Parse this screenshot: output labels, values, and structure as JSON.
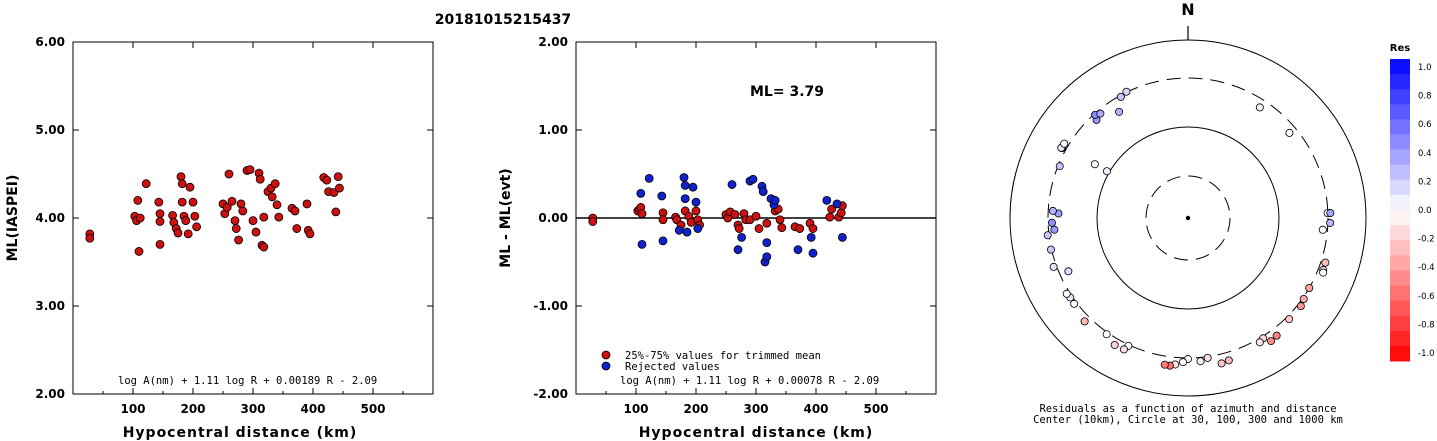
{
  "title": "20181015215437",
  "chart_data": [
    {
      "type": "scatter",
      "name": "ml-vs-distance",
      "xlabel": "Hypocentral distance (km)",
      "ylabel": "ML(IASPEI)",
      "xlim": [
        0,
        600
      ],
      "ylim": [
        2.0,
        6.0
      ],
      "xticks": [
        "100",
        "200",
        "300",
        "400",
        "500"
      ],
      "yticks": [
        "2.00",
        "3.00",
        "4.00",
        "5.00",
        "6.00"
      ],
      "formula": "log A(nm) + 1.11 log R + 0.00189 R - 2.09",
      "color": "#cc1111",
      "points": [
        [
          28,
          3.82
        ],
        [
          28,
          3.77
        ],
        [
          103,
          4.02
        ],
        [
          106,
          3.97
        ],
        [
          108,
          4.2
        ],
        [
          110,
          3.62
        ],
        [
          112,
          4.0
        ],
        [
          122,
          4.39
        ],
        [
          143,
          4.18
        ],
        [
          145,
          4.05
        ],
        [
          145,
          3.96
        ],
        [
          145,
          3.7
        ],
        [
          166,
          4.03
        ],
        [
          168,
          3.95
        ],
        [
          172,
          3.88
        ],
        [
          175,
          3.83
        ],
        [
          180,
          4.47
        ],
        [
          182,
          4.39
        ],
        [
          182,
          4.18
        ],
        [
          185,
          4.02
        ],
        [
          188,
          3.97
        ],
        [
          192,
          3.82
        ],
        [
          195,
          4.35
        ],
        [
          200,
          4.18
        ],
        [
          203,
          4.02
        ],
        [
          206,
          3.9
        ],
        [
          250,
          4.16
        ],
        [
          253,
          4.05
        ],
        [
          257,
          4.12
        ],
        [
          260,
          4.5
        ],
        [
          265,
          4.19
        ],
        [
          270,
          3.97
        ],
        [
          272,
          3.88
        ],
        [
          276,
          3.75
        ],
        [
          280,
          4.16
        ],
        [
          283,
          4.08
        ],
        [
          290,
          4.54
        ],
        [
          295,
          4.55
        ],
        [
          300,
          3.97
        ],
        [
          305,
          3.84
        ],
        [
          310,
          4.51
        ],
        [
          312,
          4.44
        ],
        [
          315,
          3.69
        ],
        [
          318,
          4.01
        ],
        [
          318,
          3.67
        ],
        [
          325,
          4.3
        ],
        [
          330,
          4.34
        ],
        [
          332,
          4.24
        ],
        [
          337,
          4.39
        ],
        [
          340,
          4.15
        ],
        [
          343,
          4.01
        ],
        [
          365,
          4.11
        ],
        [
          370,
          4.08
        ],
        [
          373,
          3.88
        ],
        [
          390,
          4.16
        ],
        [
          392,
          3.86
        ],
        [
          395,
          3.82
        ],
        [
          418,
          4.46
        ],
        [
          423,
          4.43
        ],
        [
          426,
          4.3
        ],
        [
          435,
          4.29
        ],
        [
          438,
          4.07
        ],
        [
          442,
          4.47
        ],
        [
          444,
          4.34
        ]
      ]
    },
    {
      "type": "scatter",
      "name": "residual-vs-distance",
      "xlabel": "Hypocentral distance (km)",
      "ylabel": "ML - ML(evt)",
      "xlim": [
        0,
        600
      ],
      "ylim": [
        -2.0,
        2.0
      ],
      "xticks": [
        "100",
        "200",
        "300",
        "400",
        "500"
      ],
      "yticks": [
        "-2.00",
        "-1.00",
        "0.00",
        "1.00",
        "2.00"
      ],
      "annotation": "ML= 3.79",
      "formula": "log A(nm) + 1.11 log R + 0.00078 R - 2.09",
      "legend": [
        {
          "label": "25%-75% values for trimmed mean",
          "color": "#cc1111"
        },
        {
          "label": "Rejected values",
          "color": "#1122cc"
        }
      ],
      "series": [
        {
          "color": "#cc1111",
          "points": [
            [
              28,
              0.0
            ],
            [
              28,
              -0.04
            ],
            [
              103,
              0.08
            ],
            [
              106,
              0.1
            ],
            [
              108,
              0.12
            ],
            [
              110,
              0.05
            ],
            [
              145,
              0.06
            ],
            [
              145,
              -0.02
            ],
            [
              166,
              0.01
            ],
            [
              168,
              -0.02
            ],
            [
              175,
              -0.08
            ],
            [
              182,
              0.08
            ],
            [
              188,
              0.02
            ],
            [
              192,
              -0.05
            ],
            [
              200,
              0.08
            ],
            [
              203,
              -0.02
            ],
            [
              206,
              -0.08
            ],
            [
              250,
              0.04
            ],
            [
              253,
              0.0
            ],
            [
              257,
              0.07
            ],
            [
              265,
              0.04
            ],
            [
              270,
              -0.08
            ],
            [
              272,
              -0.12
            ],
            [
              280,
              0.05
            ],
            [
              283,
              -0.02
            ],
            [
              290,
              -0.02
            ],
            [
              300,
              0.02
            ],
            [
              305,
              -0.12
            ],
            [
              318,
              -0.06
            ],
            [
              332,
              0.08
            ],
            [
              337,
              0.1
            ],
            [
              340,
              -0.02
            ],
            [
              343,
              -0.11
            ],
            [
              365,
              -0.1
            ],
            [
              373,
              -0.12
            ],
            [
              390,
              -0.06
            ],
            [
              395,
              -0.12
            ],
            [
              423,
              0.01
            ],
            [
              426,
              0.1
            ],
            [
              438,
              0.01
            ],
            [
              442,
              0.06
            ],
            [
              444,
              0.14
            ]
          ]
        },
        {
          "color": "#1122cc",
          "points": [
            [
              108,
              0.28
            ],
            [
              110,
              -0.3
            ],
            [
              122,
              0.45
            ],
            [
              143,
              0.25
            ],
            [
              145,
              -0.26
            ],
            [
              172,
              -0.14
            ],
            [
              180,
              0.46
            ],
            [
              182,
              0.37
            ],
            [
              182,
              0.22
            ],
            [
              185,
              -0.16
            ],
            [
              195,
              0.35
            ],
            [
              200,
              0.18
            ],
            [
              203,
              -0.12
            ],
            [
              260,
              0.38
            ],
            [
              270,
              -0.36
            ],
            [
              276,
              -0.22
            ],
            [
              290,
              0.42
            ],
            [
              295,
              0.44
            ],
            [
              310,
              0.36
            ],
            [
              312,
              0.3
            ],
            [
              315,
              -0.5
            ],
            [
              318,
              -0.44
            ],
            [
              318,
              -0.28
            ],
            [
              325,
              0.22
            ],
            [
              330,
              0.15
            ],
            [
              332,
              0.2
            ],
            [
              370,
              -0.36
            ],
            [
              392,
              -0.22
            ],
            [
              395,
              -0.4
            ],
            [
              418,
              0.2
            ],
            [
              435,
              0.16
            ],
            [
              444,
              -0.22
            ]
          ]
        }
      ]
    },
    {
      "type": "scatter",
      "name": "residual-azimuth-map",
      "north_label": "N",
      "caption_line1": "Residuals as a function of azimuth and distance",
      "caption_line2": "Center (10km), Circle at 30, 100, 300 and 1000 km",
      "colorbar_title": "Res",
      "colorbar_ticks": [
        "1.0",
        "0.8",
        "0.6",
        "0.4",
        "0.2",
        "0.0",
        "-0.2",
        "-0.4",
        "-0.6",
        "-0.8",
        "-1.0"
      ],
      "stations": [
        {
          "az": 300,
          "dist": 106,
          "res": 0.05
        },
        {
          "az": 300,
          "dist": 145,
          "res": 0.02
        },
        {
          "az": 33,
          "dist": 250,
          "res": 0.04
        },
        {
          "az": 50,
          "dist": 253,
          "res": 0.01
        },
        {
          "az": 88,
          "dist": 298,
          "res": 0.04
        },
        {
          "az": 95,
          "dist": 270,
          "res": 0.01
        },
        {
          "az": 88,
          "dist": 324,
          "res": 0.35
        },
        {
          "az": 92,
          "dist": 322,
          "res": 0.28
        },
        {
          "az": 108,
          "dist": 345,
          "res": -0.26
        },
        {
          "az": 111,
          "dist": 350,
          "res": -0.16
        },
        {
          "az": 112,
          "dist": 360,
          "res": 0.02
        },
        {
          "az": 120,
          "dist": 300,
          "res": -0.36
        },
        {
          "az": 125,
          "dist": 312,
          "res": -0.32
        },
        {
          "az": 128,
          "dist": 332,
          "res": -0.42
        },
        {
          "az": 135,
          "dist": 330,
          "res": -0.22
        },
        {
          "az": 148,
          "dist": 318,
          "res": -0.15
        },
        {
          "az": 150,
          "dist": 336,
          "res": -0.1
        },
        {
          "az": 143,
          "dist": 378,
          "res": -0.5
        },
        {
          "az": 146,
          "dist": 392,
          "res": -0.46
        },
        {
          "az": 164,
          "dist": 388,
          "res": -0.28
        },
        {
          "az": 167,
          "dist": 402,
          "res": -0.22
        },
        {
          "az": 172,
          "dist": 312,
          "res": -0.12
        },
        {
          "az": 175,
          "dist": 338,
          "res": -0.06
        },
        {
          "az": 180,
          "dist": 310,
          "res": -0.02
        },
        {
          "az": 182,
          "dist": 343,
          "res": 0.01
        },
        {
          "az": 185,
          "dist": 375,
          "res": -0.1
        },
        {
          "az": 187,
          "dist": 396,
          "res": -0.55
        },
        {
          "az": 189,
          "dist": 393,
          "res": -0.52
        },
        {
          "az": 205,
          "dist": 310,
          "res": 0.02
        },
        {
          "az": 206,
          "dist": 365,
          "res": -0.12
        },
        {
          "az": 210,
          "dist": 370,
          "res": -0.18
        },
        {
          "az": 215,
          "dist": 318,
          "res": 0.01
        },
        {
          "az": 225,
          "dist": 365,
          "res": -0.28
        },
        {
          "az": 233,
          "dist": 325,
          "res": 0.02
        },
        {
          "az": 236,
          "dist": 320,
          "res": 0.08
        },
        {
          "az": 238,
          "dist": 330,
          "res": 0.01
        },
        {
          "az": 246,
          "dist": 245,
          "res": 0.14
        },
        {
          "az": 250,
          "dist": 330,
          "res": 0.1
        },
        {
          "az": 257,
          "dist": 306,
          "res": 0.22
        },
        {
          "az": 263,
          "dist": 313,
          "res": 0.22
        },
        {
          "az": 265,
          "dist": 263,
          "res": 0.4
        },
        {
          "az": 268,
          "dist": 275,
          "res": 0.44
        },
        {
          "az": 272,
          "dist": 238,
          "res": 0.38
        },
        {
          "az": 273,
          "dist": 270,
          "res": 0.3
        },
        {
          "az": 292,
          "dist": 289,
          "res": 0.24
        },
        {
          "az": 299,
          "dist": 342,
          "res": 0.2
        },
        {
          "az": 299,
          "dist": 350,
          "res": 0.1
        },
        {
          "az": 301,
          "dist": 345,
          "res": 0.02
        },
        {
          "az": 317,
          "dist": 263,
          "res": 0.4
        },
        {
          "az": 318,
          "dist": 292,
          "res": 0.47
        },
        {
          "az": 320,
          "dist": 276,
          "res": 0.32
        },
        {
          "az": 327,
          "dist": 222,
          "res": 0.3
        },
        {
          "az": 331,
          "dist": 290,
          "res": 0.22
        },
        {
          "az": 334,
          "dist": 305,
          "res": 0.16
        }
      ]
    }
  ]
}
